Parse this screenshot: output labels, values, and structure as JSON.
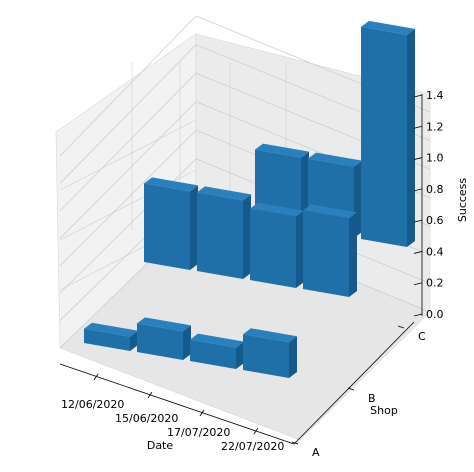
{
  "chart_data": {
    "type": "bar",
    "projection": "3d",
    "xlabel": "Date",
    "ylabel": "Shop",
    "zlabel": "Success",
    "x_ticks": [
      "12/06/2020",
      "15/06/2020",
      "17/07/2020",
      "22/07/2020"
    ],
    "y_ticks": [
      "A",
      "B",
      "C"
    ],
    "z_ticks": [
      "0.0",
      "0.2",
      "0.4",
      "0.6",
      "0.8",
      "1.0",
      "1.2",
      "1.4"
    ],
    "zlim": [
      0,
      1.4
    ],
    "grid": true,
    "color": "#1f6fa8",
    "categories_x": [
      "12/06/2020",
      "15/06/2020",
      "17/07/2020",
      "22/07/2020"
    ],
    "categories_y": [
      "A",
      "B",
      "C"
    ],
    "values": [
      [
        0.1,
        0.2,
        0.15,
        0.25
      ],
      [
        0.55,
        0.55,
        0.5,
        0.55
      ],
      [
        0.0,
        0.5,
        0.5,
        1.35
      ]
    ]
  }
}
